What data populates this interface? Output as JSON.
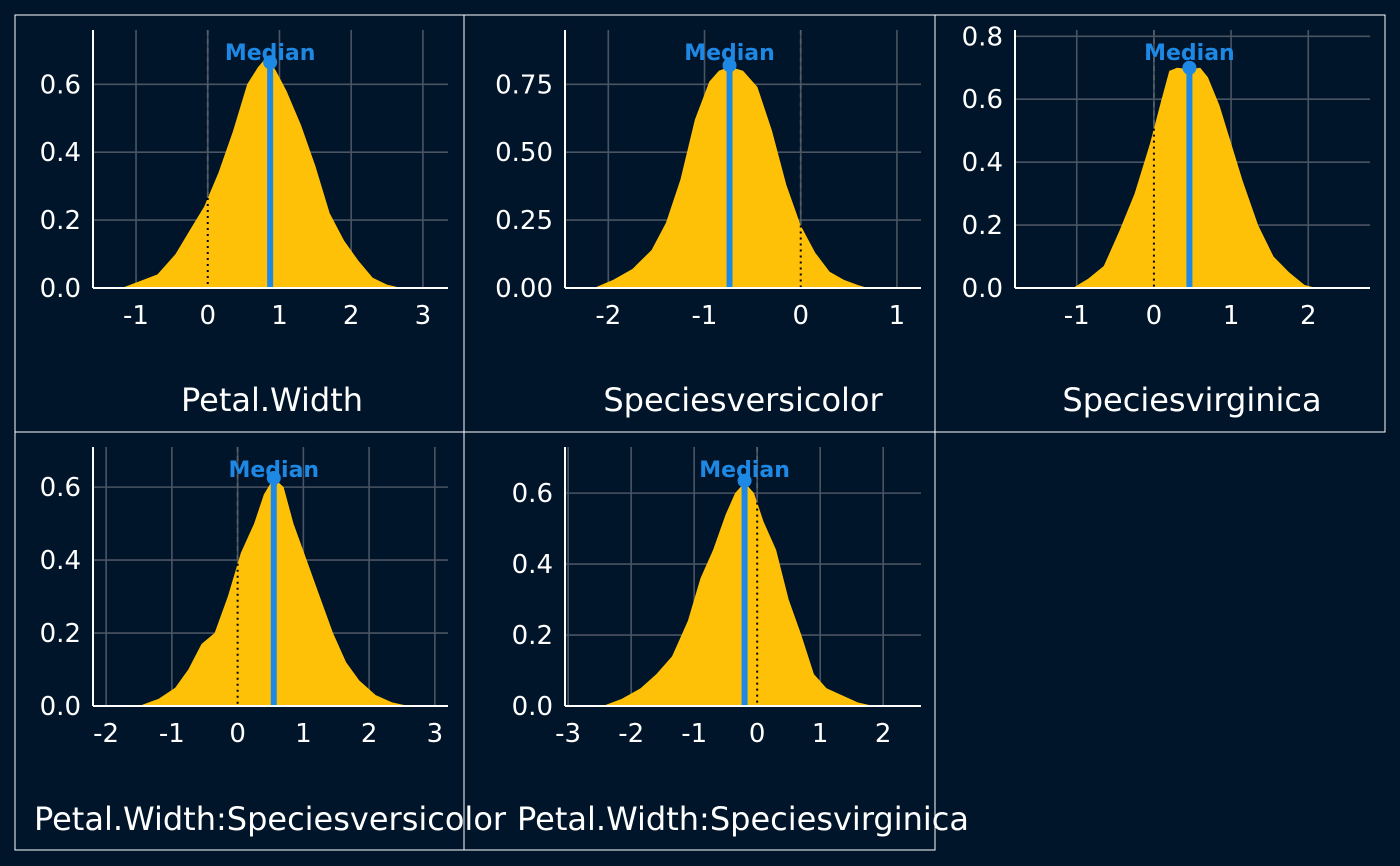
{
  "colors": {
    "background": "#001529",
    "panel_border": "#ffffff",
    "grid": "#4a5563",
    "axis": "#ffffff",
    "text": "#ffffff",
    "density_fill": "#FFC107",
    "median": "#1E88E5",
    "zero_line": "#555e6a"
  },
  "chart_data": [
    {
      "type": "area",
      "xlabel": "Petal.Width",
      "median_label": "Median",
      "xlim": [
        -1.6,
        3.35
      ],
      "ylim": [
        0,
        0.76
      ],
      "x_ticks": [
        -1,
        0,
        1,
        2,
        3
      ],
      "x_tick_labels": [
        "-1",
        "0",
        "1",
        "2",
        "3"
      ],
      "y_ticks": [
        0,
        0.2,
        0.4,
        0.6
      ],
      "y_tick_labels": [
        "0.0",
        "0.2",
        "0.4",
        "0.6"
      ],
      "median": 0.87,
      "median_density": 0.665,
      "density": {
        "x": [
          -1.2,
          -0.95,
          -0.7,
          -0.45,
          -0.25,
          -0.05,
          0.15,
          0.35,
          0.55,
          0.7,
          0.8,
          0.87,
          0.95,
          1.1,
          1.3,
          1.5,
          1.7,
          1.9,
          2.1,
          2.3,
          2.5,
          2.7
        ],
        "y": [
          0.0,
          0.02,
          0.04,
          0.1,
          0.17,
          0.24,
          0.34,
          0.46,
          0.6,
          0.65,
          0.675,
          0.665,
          0.64,
          0.58,
          0.48,
          0.36,
          0.22,
          0.14,
          0.08,
          0.03,
          0.01,
          0.0
        ]
      }
    },
    {
      "type": "area",
      "xlabel": "Speciesversicolor",
      "median_label": "Median",
      "xlim": [
        -2.45,
        1.25
      ],
      "ylim": [
        0,
        0.95
      ],
      "x_ticks": [
        -2,
        -1,
        0,
        1
      ],
      "x_tick_labels": [
        "-2",
        "-1",
        "0",
        "1"
      ],
      "y_ticks": [
        0,
        0.25,
        0.5,
        0.75
      ],
      "y_tick_labels": [
        "0.00",
        "0.25",
        "0.50",
        "0.75"
      ],
      "median": -0.74,
      "median_density": 0.82,
      "density": {
        "x": [
          -2.15,
          -1.95,
          -1.75,
          -1.55,
          -1.4,
          -1.25,
          -1.1,
          -0.95,
          -0.85,
          -0.74,
          -0.6,
          -0.45,
          -0.3,
          -0.15,
          0.0,
          0.15,
          0.3,
          0.45,
          0.6,
          0.7
        ],
        "y": [
          0.0,
          0.03,
          0.07,
          0.14,
          0.24,
          0.4,
          0.62,
          0.76,
          0.8,
          0.815,
          0.8,
          0.74,
          0.58,
          0.38,
          0.23,
          0.13,
          0.06,
          0.03,
          0.01,
          0.0
        ]
      }
    },
    {
      "type": "area",
      "xlabel": "Speciesvirginica",
      "median_label": "Median",
      "xlim": [
        -1.8,
        2.8
      ],
      "ylim": [
        0,
        0.82
      ],
      "x_ticks": [
        -1,
        0,
        1,
        2
      ],
      "x_tick_labels": [
        "-1",
        "0",
        "1",
        "2"
      ],
      "y_ticks": [
        0,
        0.2,
        0.4,
        0.6,
        0.8
      ],
      "y_tick_labels": [
        "0.0",
        "0.2",
        "0.4",
        "0.6",
        "0.8"
      ],
      "median": 0.46,
      "median_density": 0.7,
      "density": {
        "x": [
          -1.05,
          -0.85,
          -0.65,
          -0.45,
          -0.25,
          -0.05,
          0.1,
          0.2,
          0.3,
          0.46,
          0.6,
          0.7,
          0.85,
          1.0,
          1.15,
          1.35,
          1.55,
          1.75,
          1.95,
          2.1
        ],
        "y": [
          0.0,
          0.03,
          0.07,
          0.18,
          0.3,
          0.46,
          0.6,
          0.69,
          0.7,
          0.695,
          0.7,
          0.67,
          0.58,
          0.46,
          0.34,
          0.2,
          0.1,
          0.05,
          0.01,
          0.0
        ]
      }
    },
    {
      "type": "area",
      "xlabel": "Petal.Width:Speciesversicolor",
      "median_label": "Median",
      "xlim": [
        -2.2,
        3.2
      ],
      "ylim": [
        0,
        0.71
      ],
      "x_ticks": [
        -2,
        -1,
        0,
        1,
        2,
        3
      ],
      "x_tick_labels": [
        "-2",
        "-1",
        "0",
        "1",
        "2",
        "3"
      ],
      "y_ticks": [
        0,
        0.2,
        0.4,
        0.6
      ],
      "y_tick_labels": [
        "0.0",
        "0.2",
        "0.4",
        "0.6"
      ],
      "median": 0.55,
      "median_density": 0.625,
      "density": {
        "x": [
          -1.5,
          -1.2,
          -0.95,
          -0.75,
          -0.55,
          -0.35,
          -0.15,
          0.05,
          0.25,
          0.4,
          0.55,
          0.7,
          0.85,
          1.05,
          1.25,
          1.45,
          1.65,
          1.85,
          2.1,
          2.35,
          2.6
        ],
        "y": [
          0.0,
          0.02,
          0.05,
          0.1,
          0.17,
          0.2,
          0.3,
          0.42,
          0.5,
          0.58,
          0.625,
          0.6,
          0.5,
          0.4,
          0.3,
          0.2,
          0.12,
          0.07,
          0.03,
          0.01,
          0.0
        ]
      }
    },
    {
      "type": "area",
      "xlabel": "Petal.Width:Speciesvirginica",
      "median_label": "Median",
      "xlim": [
        -3.05,
        2.6
      ],
      "ylim": [
        0,
        0.73
      ],
      "x_ticks": [
        -3,
        -2,
        -1,
        0,
        1,
        2
      ],
      "x_tick_labels": [
        "-3",
        "-2",
        "-1",
        "0",
        "1",
        "2"
      ],
      "y_ticks": [
        0,
        0.2,
        0.4,
        0.6
      ],
      "y_tick_labels": [
        "0.0",
        "0.2",
        "0.4",
        "0.6"
      ],
      "median": -0.2,
      "median_density": 0.635,
      "density": {
        "x": [
          -2.45,
          -2.15,
          -1.85,
          -1.6,
          -1.35,
          -1.1,
          -0.9,
          -0.7,
          -0.5,
          -0.35,
          -0.2,
          -0.05,
          0.1,
          0.3,
          0.5,
          0.7,
          0.9,
          1.1,
          1.35,
          1.6,
          1.85
        ],
        "y": [
          0.0,
          0.02,
          0.05,
          0.09,
          0.14,
          0.24,
          0.36,
          0.44,
          0.54,
          0.6,
          0.63,
          0.6,
          0.52,
          0.44,
          0.3,
          0.2,
          0.09,
          0.05,
          0.03,
          0.01,
          0.0
        ]
      }
    }
  ]
}
